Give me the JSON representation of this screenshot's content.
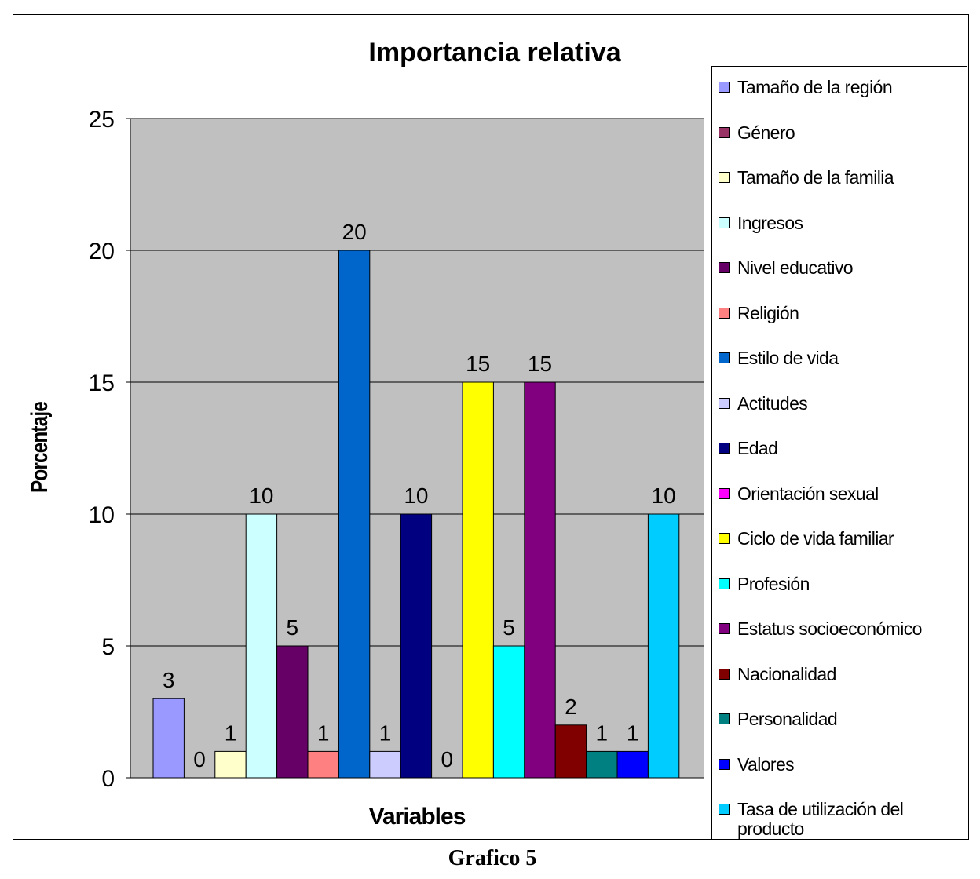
{
  "caption": "Grafico 5",
  "chart_data": {
    "type": "bar",
    "title": "Importancia relativa",
    "xlabel": "Variables",
    "ylabel": "Porcentaje",
    "ylim": [
      0,
      25
    ],
    "yticks": [
      "0",
      "5",
      "10",
      "15",
      "20",
      "25"
    ],
    "grid": true,
    "legend_position": "right",
    "series": [
      {
        "name": "Tamaño de la región",
        "value": 3,
        "color": "#9999FF"
      },
      {
        "name": "Género",
        "value": 0,
        "color": "#993366"
      },
      {
        "name": "Tamaño de la familia",
        "value": 1,
        "color": "#FFFFCC"
      },
      {
        "name": "Ingresos",
        "value": 10,
        "color": "#CCFFFF"
      },
      {
        "name": "Nivel educativo",
        "value": 5,
        "color": "#660066"
      },
      {
        "name": "Religión",
        "value": 1,
        "color": "#FF8080"
      },
      {
        "name": "Estilo de vida",
        "value": 20,
        "color": "#0066CC"
      },
      {
        "name": "Actitudes",
        "value": 1,
        "color": "#CCCCFF"
      },
      {
        "name": "Edad",
        "value": 10,
        "color": "#000080"
      },
      {
        "name": "Orientación sexual",
        "value": 0,
        "color": "#FF00FF"
      },
      {
        "name": "Ciclo de vida familiar",
        "value": 15,
        "color": "#FFFF00"
      },
      {
        "name": "Profesión",
        "value": 5,
        "color": "#00FFFF"
      },
      {
        "name": "Estatus socioeconómico",
        "value": 15,
        "color": "#800080"
      },
      {
        "name": "Nacionalidad",
        "value": 2,
        "color": "#800000"
      },
      {
        "name": "Personalidad",
        "value": 1,
        "color": "#008080"
      },
      {
        "name": "Valores",
        "value": 1,
        "color": "#0000FF"
      },
      {
        "name": "Tasa de utilización del producto",
        "value": 10,
        "color": "#00CCFF"
      }
    ],
    "plot_background": "#C0C0C0"
  }
}
